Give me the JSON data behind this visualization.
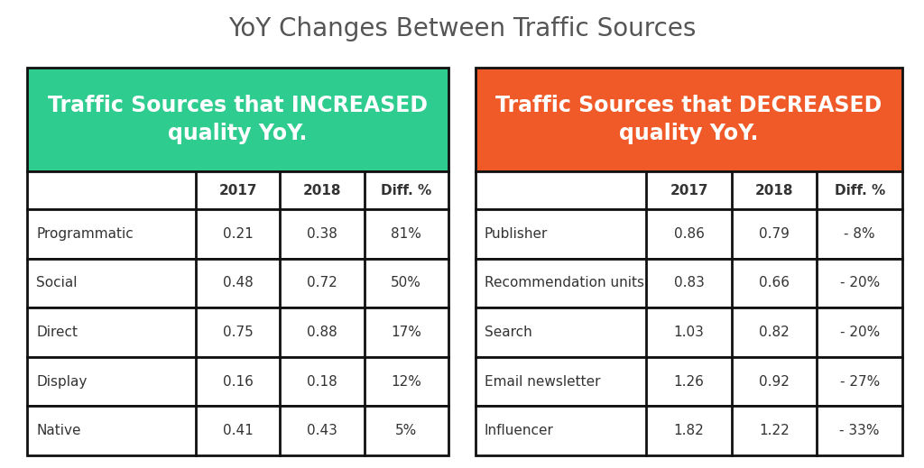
{
  "title": "YoY Changes Between Traffic Sources",
  "title_fontsize": 20,
  "title_color": "#555555",
  "background_color": "#ffffff",
  "left_header_color": "#2ECC8E",
  "right_header_color": "#F05A28",
  "header_text_color": "#ffffff",
  "left_header_text": "Traffic Sources that INCREASED\nquality YoY.",
  "right_header_text": "Traffic Sources that DECREASED\nquality YoY.",
  "col_headers": [
    "",
    "2017",
    "2018",
    "Diff. %"
  ],
  "left_rows": [
    [
      "Programmatic",
      "0.21",
      "0.38",
      "81%"
    ],
    [
      "Social",
      "0.48",
      "0.72",
      "50%"
    ],
    [
      "Direct",
      "0.75",
      "0.88",
      "17%"
    ],
    [
      "Display",
      "0.16",
      "0.18",
      "12%"
    ],
    [
      "Native",
      "0.41",
      "0.43",
      "5%"
    ]
  ],
  "right_rows": [
    [
      "Publisher",
      "0.86",
      "0.79",
      "- 8%"
    ],
    [
      "Recommendation units",
      "0.83",
      "0.66",
      "- 20%"
    ],
    [
      "Search",
      "1.03",
      "0.82",
      "- 20%"
    ],
    [
      "Email newsletter",
      "1.26",
      "0.92",
      "- 27%"
    ],
    [
      "Influencer",
      "1.82",
      "1.22",
      "- 33%"
    ]
  ],
  "border_color": "#111111",
  "text_color": "#333333",
  "col_header_fontsize": 11,
  "data_fontsize": 11,
  "header_fontsize": 17
}
